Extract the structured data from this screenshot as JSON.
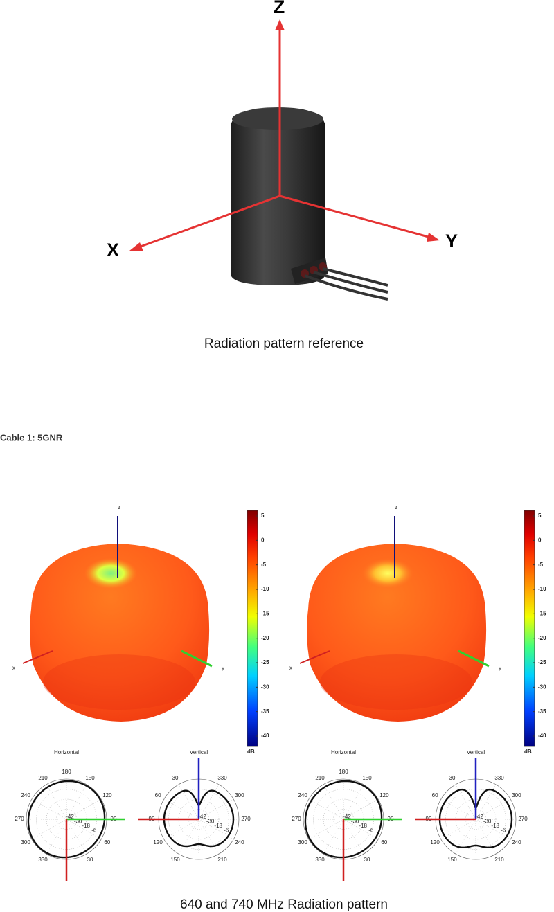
{
  "reference": {
    "axes": {
      "z": "Z",
      "x": "X",
      "y": "Y"
    },
    "caption": "Radiation pattern reference"
  },
  "section": {
    "heading": "Cable 1: 5GNR"
  },
  "patterns": {
    "panels": [
      {
        "axes": {
          "z": "z",
          "x": "x",
          "y": "y"
        },
        "colorbar": {
          "ticks": [
            5,
            0,
            -5,
            -10,
            -15,
            -20,
            -25,
            -30,
            -35,
            -40
          ],
          "unit": "dB"
        },
        "horizontal": {
          "title": "Horizontal",
          "angles": [
            180,
            150,
            120,
            90,
            60,
            30,
            330,
            300,
            270,
            240,
            210
          ],
          "radii": [
            -42,
            -30,
            -18,
            -6
          ]
        },
        "vertical": {
          "title": "Vertical",
          "angles": [
            330,
            300,
            270,
            240,
            210,
            150,
            120,
            90,
            60,
            30
          ],
          "radii": [
            -42,
            -30,
            -18,
            -6
          ]
        }
      },
      {
        "axes": {
          "z": "z",
          "x": "x",
          "y": "y"
        },
        "colorbar": {
          "ticks": [
            5,
            0,
            -5,
            -10,
            -15,
            -20,
            -25,
            -30,
            -35,
            -40
          ],
          "unit": "dB"
        },
        "horizontal": {
          "title": "Horizontal",
          "angles": [
            180,
            150,
            120,
            90,
            60,
            30,
            330,
            300,
            270,
            240,
            210
          ],
          "radii": [
            -42,
            -30,
            -18,
            -6
          ]
        },
        "vertical": {
          "title": "Vertical",
          "angles": [
            330,
            300,
            270,
            240,
            210,
            150,
            120,
            90,
            60,
            30
          ],
          "radii": [
            -42,
            -30,
            -18,
            -6
          ]
        }
      }
    ],
    "caption": "640 and 740 MHz Radiation pattern"
  }
}
